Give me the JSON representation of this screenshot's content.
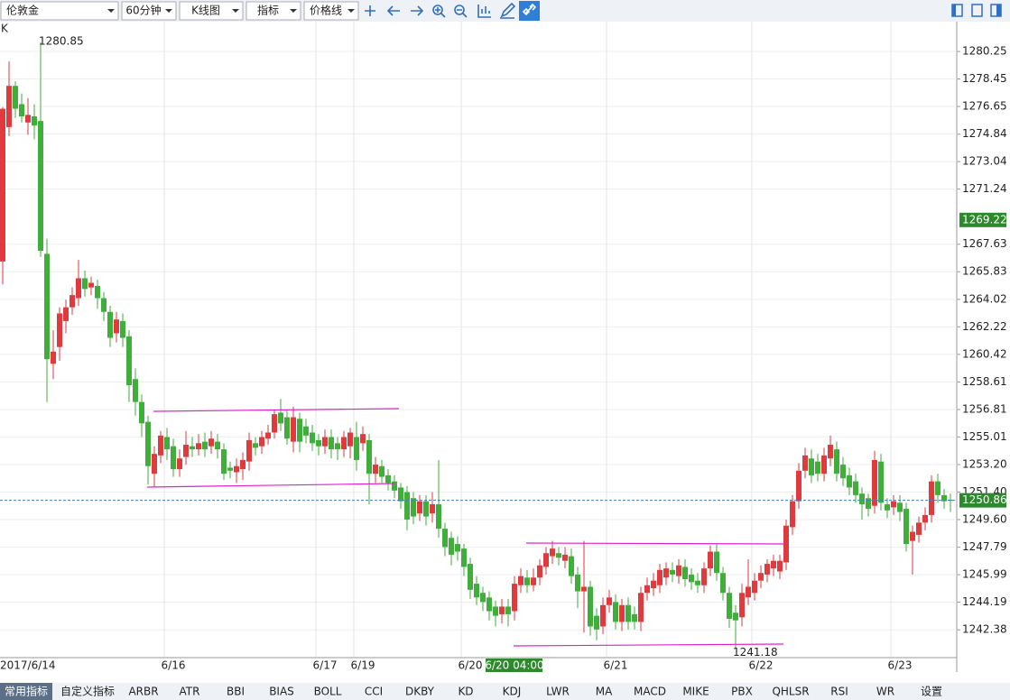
{
  "toolbar": {
    "selects": [
      "伦敦金",
      "60分钟",
      "K线图",
      "指标",
      "价格线"
    ]
  },
  "chart_data": {
    "type": "candlestick",
    "axis_label": "K",
    "up_color": "#e0393e",
    "down_color": "#3fae3a",
    "ylim": [
      1240.62,
      1281.85
    ],
    "yticks": [
      1280.25,
      1278.45,
      1276.65,
      1274.84,
      1273.04,
      1271.24,
      1267.63,
      1265.83,
      1264.02,
      1262.22,
      1260.42,
      1258.61,
      1256.81,
      1255.01,
      {
        "value": 1253.2,
        "label": "1253.20"
      },
      {
        "value": 1251.4,
        "label": "1251.40"
      },
      {
        "value": 1249.6,
        "label": "1249.60"
      },
      1247.79,
      1245.99,
      1244.19,
      1242.38
    ],
    "crosshair_price": 1269.22,
    "last_price": 1250.86,
    "categories": [
      "2017/6/14",
      null,
      null,
      null,
      null,
      null,
      null,
      null,
      null,
      null,
      null,
      null,
      null,
      null,
      null,
      null,
      null,
      null,
      null,
      null,
      null,
      null,
      null,
      null,
      null,
      null,
      null,
      "6/16",
      null,
      null,
      null,
      null,
      null,
      null,
      null,
      null,
      null,
      null,
      null,
      null,
      null,
      null,
      null,
      null,
      null,
      null,
      null,
      null,
      null,
      null,
      null,
      "6/17",
      null,
      null,
      null,
      null,
      null,
      "6/19",
      null,
      null,
      null,
      null,
      null,
      null,
      null,
      null,
      null,
      null,
      null,
      null,
      null,
      null,
      null,
      null,
      "6/20",
      null,
      null,
      null,
      null,
      null,
      null,
      "6/20 04:00",
      null,
      null,
      null,
      null,
      null,
      null,
      null,
      null,
      null,
      null,
      null,
      null,
      null,
      null,
      null,
      "6/21",
      null,
      null,
      null,
      null,
      null,
      null,
      null,
      null,
      null,
      null,
      null,
      null,
      null,
      null,
      null,
      null,
      null,
      null,
      null,
      null,
      null,
      null,
      "6/22",
      null,
      null,
      null,
      null,
      null,
      null,
      null,
      null,
      null,
      null,
      null,
      null,
      null,
      null,
      null,
      null,
      null,
      null,
      null,
      null,
      null,
      "6/23",
      null,
      null,
      null,
      null,
      null,
      null,
      null,
      null
    ],
    "ohlc": [
      [
        1266.5,
        1276.6,
        1265.0,
        1276.5
      ],
      [
        1275.3,
        1279.6,
        1274.7,
        1278.0
      ],
      [
        1278.0,
        1278.3,
        1275.9,
        1276.5
      ],
      [
        1276.8,
        1277.5,
        1275.6,
        1276.0
      ],
      [
        1275.6,
        1277.2,
        1274.8,
        1276.1
      ],
      [
        1276.0,
        1276.8,
        1274.5,
        1275.4
      ],
      [
        1275.7,
        1280.85,
        1266.8,
        1267.2
      ],
      [
        1267.0,
        1268.0,
        1257.3,
        1260.1
      ],
      [
        1259.8,
        1262.0,
        1258.8,
        1260.6
      ],
      [
        1260.9,
        1263.5,
        1260.0,
        1263.1
      ],
      [
        1262.6,
        1264.0,
        1261.8,
        1263.5
      ],
      [
        1263.5,
        1264.8,
        1263.0,
        1264.3
      ],
      [
        1264.1,
        1266.6,
        1263.6,
        1265.4
      ],
      [
        1265.4,
        1265.9,
        1264.2,
        1264.7
      ],
      [
        1264.8,
        1265.5,
        1264.3,
        1265.1
      ],
      [
        1264.9,
        1265.3,
        1263.4,
        1264.1
      ],
      [
        1264.1,
        1264.5,
        1262.6,
        1263.2
      ],
      [
        1263.2,
        1263.6,
        1260.9,
        1261.5
      ],
      [
        1261.8,
        1263.2,
        1261.2,
        1262.7
      ],
      [
        1262.6,
        1263.1,
        1260.9,
        1261.5
      ],
      [
        1261.6,
        1262.0,
        1257.3,
        1258.4
      ],
      [
        1258.8,
        1259.5,
        1256.4,
        1257.3
      ],
      [
        1257.3,
        1257.8,
        1255.0,
        1255.9
      ],
      [
        1256.0,
        1256.4,
        1251.9,
        1253.1
      ],
      [
        1252.6,
        1254.4,
        1251.7,
        1253.9
      ],
      [
        1253.8,
        1255.4,
        1253.3,
        1255.1
      ],
      [
        1255.0,
        1255.6,
        1253.5,
        1254.2
      ],
      [
        1254.4,
        1254.9,
        1252.4,
        1252.9
      ],
      [
        1252.9,
        1254.2,
        1252.4,
        1253.6
      ],
      [
        1253.7,
        1255.4,
        1253.2,
        1254.5
      ],
      [
        1254.4,
        1255.0,
        1253.7,
        1254.2
      ],
      [
        1254.2,
        1255.2,
        1253.8,
        1254.6
      ],
      [
        1254.7,
        1255.3,
        1253.7,
        1254.2
      ],
      [
        1254.4,
        1255.4,
        1253.9,
        1254.9
      ],
      [
        1254.7,
        1255.2,
        1253.6,
        1254.2
      ],
      [
        1254.2,
        1254.6,
        1252.2,
        1252.6
      ],
      [
        1253.0,
        1253.4,
        1252.3,
        1252.8
      ],
      [
        1252.7,
        1253.6,
        1252.0,
        1253.1
      ],
      [
        1252.9,
        1254.0,
        1252.2,
        1253.5
      ],
      [
        1253.4,
        1255.3,
        1252.8,
        1254.8
      ],
      [
        1254.6,
        1255.0,
        1253.8,
        1254.3
      ],
      [
        1254.4,
        1255.4,
        1253.9,
        1255.0
      ],
      [
        1254.9,
        1255.8,
        1254.5,
        1255.3
      ],
      [
        1255.3,
        1256.8,
        1254.9,
        1256.5
      ],
      [
        1256.6,
        1257.5,
        1255.4,
        1255.9
      ],
      [
        1256.3,
        1256.8,
        1254.5,
        1254.9
      ],
      [
        1254.7,
        1257.0,
        1254.0,
        1256.3
      ],
      [
        1256.2,
        1256.6,
        1254.0,
        1254.7
      ],
      [
        1255.7,
        1256.2,
        1254.6,
        1255.1
      ],
      [
        1255.3,
        1255.8,
        1254.1,
        1254.6
      ],
      [
        1254.8,
        1255.2,
        1253.8,
        1254.4
      ],
      [
        1254.4,
        1255.5,
        1253.9,
        1255.0
      ],
      [
        1255.0,
        1255.5,
        1253.6,
        1254.2
      ],
      [
        1254.6,
        1255.0,
        1253.5,
        1254.2
      ],
      [
        1254.2,
        1255.4,
        1253.7,
        1255.0
      ],
      [
        1254.4,
        1255.6,
        1253.6,
        1255.3
      ],
      [
        1255.0,
        1256.0,
        1252.8,
        1253.5
      ],
      [
        1254.6,
        1255.7,
        1254.1,
        1255.2
      ],
      [
        1254.8,
        1255.2,
        1250.6,
        1252.6
      ],
      [
        1252.6,
        1253.7,
        1252.0,
        1253.2
      ],
      [
        1253.1,
        1253.5,
        1252.0,
        1252.4
      ],
      [
        1252.5,
        1252.9,
        1251.5,
        1252.0
      ],
      [
        1252.1,
        1252.5,
        1251.0,
        1251.5
      ],
      [
        1251.7,
        1252.0,
        1250.3,
        1250.8
      ],
      [
        1251.4,
        1251.8,
        1248.9,
        1249.6
      ],
      [
        1251.0,
        1251.4,
        1249.3,
        1249.8
      ],
      [
        1250.0,
        1251.2,
        1249.5,
        1250.8
      ],
      [
        1250.8,
        1251.2,
        1249.2,
        1249.8
      ],
      [
        1250.0,
        1251.4,
        1249.4,
        1250.6
      ],
      [
        1250.6,
        1253.5,
        1248.4,
        1249.0
      ],
      [
        1249.0,
        1249.4,
        1247.2,
        1247.8
      ],
      [
        1248.4,
        1248.8,
        1246.6,
        1247.3
      ],
      [
        1248.0,
        1248.5,
        1246.9,
        1247.5
      ],
      [
        1247.7,
        1248.0,
        1245.9,
        1246.5
      ],
      [
        1246.7,
        1247.1,
        1244.4,
        1245.0
      ],
      [
        1245.4,
        1245.9,
        1244.0,
        1244.5
      ],
      [
        1244.8,
        1245.2,
        1243.6,
        1244.2
      ],
      [
        1244.5,
        1244.9,
        1243.0,
        1243.6
      ],
      [
        1243.9,
        1244.3,
        1242.6,
        1243.3
      ],
      [
        1243.4,
        1244.4,
        1242.8,
        1243.9
      ],
      [
        1243.9,
        1244.4,
        1242.6,
        1243.4
      ],
      [
        1243.6,
        1245.9,
        1243.0,
        1245.4
      ],
      [
        1245.3,
        1246.4,
        1244.8,
        1245.9
      ],
      [
        1245.8,
        1246.3,
        1244.8,
        1245.3
      ],
      [
        1245.3,
        1246.4,
        1244.9,
        1245.8
      ],
      [
        1245.8,
        1247.0,
        1245.3,
        1246.6
      ],
      [
        1246.5,
        1247.8,
        1246.0,
        1247.4
      ],
      [
        1247.2,
        1248.2,
        1246.7,
        1247.7
      ],
      [
        1247.4,
        1247.8,
        1246.6,
        1247.1
      ],
      [
        1246.9,
        1247.8,
        1246.4,
        1247.3
      ],
      [
        1247.2,
        1247.7,
        1245.4,
        1245.9
      ],
      [
        1246.0,
        1246.5,
        1243.8,
        1244.9
      ],
      [
        1244.9,
        1248.2,
        1242.2,
        1245.2
      ],
      [
        1245.2,
        1245.6,
        1242.0,
        1242.6
      ],
      [
        1243.3,
        1243.8,
        1241.7,
        1242.4
      ],
      [
        1242.6,
        1244.5,
        1242.1,
        1244.0
      ],
      [
        1244.0,
        1245.0,
        1243.5,
        1244.5
      ],
      [
        1244.2,
        1244.7,
        1242.4,
        1242.9
      ],
      [
        1242.9,
        1244.4,
        1242.3,
        1244.0
      ],
      [
        1244.0,
        1244.5,
        1242.4,
        1242.9
      ],
      [
        1243.4,
        1243.9,
        1242.4,
        1242.9
      ],
      [
        1242.9,
        1245.2,
        1242.3,
        1244.8
      ],
      [
        1244.8,
        1245.8,
        1244.3,
        1245.3
      ],
      [
        1245.1,
        1246.1,
        1244.6,
        1245.6
      ],
      [
        1245.3,
        1246.7,
        1244.8,
        1246.3
      ],
      [
        1245.8,
        1246.8,
        1245.3,
        1246.4
      ],
      [
        1246.3,
        1246.8,
        1245.5,
        1246.0
      ],
      [
        1245.9,
        1247.0,
        1245.4,
        1246.6
      ],
      [
        1246.5,
        1247.0,
        1245.2,
        1245.7
      ],
      [
        1246.0,
        1246.4,
        1245.0,
        1245.5
      ],
      [
        1245.6,
        1246.1,
        1244.8,
        1245.3
      ],
      [
        1245.3,
        1246.8,
        1244.8,
        1246.4
      ],
      [
        1246.4,
        1247.9,
        1245.9,
        1247.5
      ],
      [
        1247.5,
        1248.0,
        1245.6,
        1246.1
      ],
      [
        1246.1,
        1246.5,
        1244.3,
        1244.8
      ],
      [
        1244.8,
        1245.2,
        1242.5,
        1243.1
      ],
      [
        1243.5,
        1244.0,
        1241.18,
        1243.0
      ],
      [
        1243.2,
        1245.4,
        1242.6,
        1244.8
      ],
      [
        1244.5,
        1247.0,
        1244.0,
        1245.2
      ],
      [
        1244.8,
        1246.1,
        1244.3,
        1245.6
      ],
      [
        1245.6,
        1246.6,
        1245.1,
        1246.1
      ],
      [
        1246.0,
        1247.0,
        1245.5,
        1246.7
      ],
      [
        1246.4,
        1247.3,
        1245.9,
        1246.9
      ],
      [
        1246.2,
        1247.3,
        1245.7,
        1246.9
      ],
      [
        1246.8,
        1249.6,
        1246.3,
        1249.2
      ],
      [
        1249.1,
        1251.2,
        1248.6,
        1250.8
      ],
      [
        1250.8,
        1253.3,
        1250.3,
        1252.8
      ],
      [
        1252.8,
        1254.3,
        1252.3,
        1253.8
      ],
      [
        1253.6,
        1254.2,
        1252.0,
        1252.5
      ],
      [
        1253.4,
        1253.9,
        1252.1,
        1252.6
      ],
      [
        1252.6,
        1254.3,
        1252.1,
        1253.8
      ],
      [
        1253.6,
        1255.1,
        1253.1,
        1254.5
      ],
      [
        1254.2,
        1254.7,
        1252.1,
        1252.6
      ],
      [
        1253.2,
        1253.7,
        1251.8,
        1252.3
      ],
      [
        1252.5,
        1253.0,
        1251.2,
        1251.7
      ],
      [
        1252.1,
        1252.6,
        1250.7,
        1251.2
      ],
      [
        1251.3,
        1251.7,
        1249.6,
        1250.6
      ],
      [
        1251.0,
        1251.3,
        1249.8,
        1250.3
      ],
      [
        1250.5,
        1254.1,
        1250.0,
        1253.5
      ],
      [
        1253.4,
        1253.9,
        1250.2,
        1250.7
      ],
      [
        1250.6,
        1251.0,
        1249.7,
        1250.2
      ],
      [
        1250.4,
        1251.2,
        1249.9,
        1250.8
      ],
      [
        1250.7,
        1251.2,
        1249.5,
        1250.1
      ],
      [
        1250.3,
        1250.7,
        1247.5,
        1248.0
      ],
      [
        1248.2,
        1249.2,
        1246.0,
        1248.8
      ],
      [
        1248.6,
        1249.8,
        1248.1,
        1249.4
      ],
      [
        1249.4,
        1250.4,
        1248.9,
        1249.9
      ],
      [
        1249.9,
        1252.5,
        1249.4,
        1252.1
      ],
      [
        1252.1,
        1252.6,
        1250.7,
        1251.2
      ],
      [
        1251.2,
        1251.6,
        1250.3,
        1250.8
      ],
      [
        1250.9,
        1251.3,
        1250.1,
        1250.86
      ]
    ]
  },
  "tabs": [
    "常用指标",
    "自定义指标",
    "ARBR",
    "ATR",
    "BBI",
    "BIAS",
    "BOLL",
    "CCI",
    "DKBY",
    "KD",
    "KDJ",
    "LWR",
    "MA",
    "MACD",
    "MIKE",
    "PBX",
    "QHLSR",
    "RSI",
    "WR",
    "设置"
  ]
}
